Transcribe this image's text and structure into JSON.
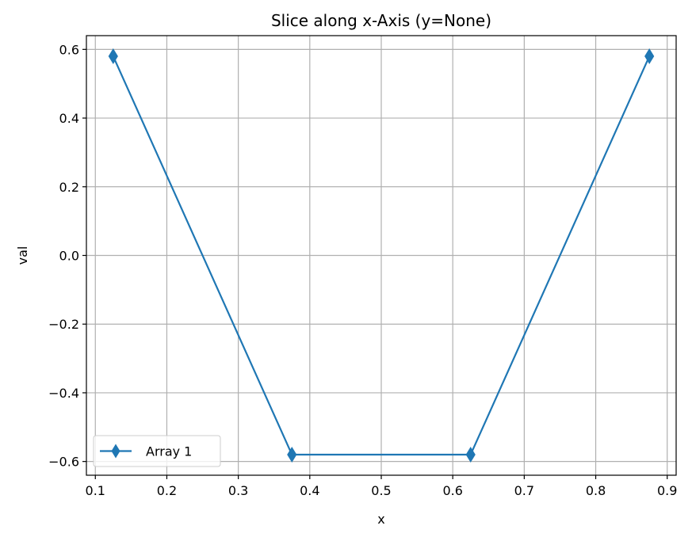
{
  "chart_data": {
    "type": "line",
    "title": "Slice along x-Axis (y=None)",
    "xlabel": "x",
    "ylabel": "val",
    "xlim": [
      0.0875,
      0.9125
    ],
    "ylim": [
      -0.64,
      0.64
    ],
    "xticks": [
      0.1,
      0.2,
      0.3,
      0.4,
      0.5,
      0.6,
      0.7,
      0.8,
      0.9
    ],
    "xtick_labels": [
      "0.1",
      "0.2",
      "0.3",
      "0.4",
      "0.5",
      "0.6",
      "0.7",
      "0.8",
      "0.9"
    ],
    "yticks": [
      -0.6,
      -0.4,
      -0.2,
      0.0,
      0.2,
      0.4,
      0.6
    ],
    "ytick_labels": [
      "−0.6",
      "−0.4",
      "−0.2",
      "0.0",
      "0.2",
      "0.4",
      "0.6"
    ],
    "grid": true,
    "legend_position": "lower-left",
    "series": [
      {
        "name": "Array 1",
        "color": "#1f77b4",
        "marker": "thin-diamond",
        "x": [
          0.125,
          0.375,
          0.625,
          0.875
        ],
        "y": [
          0.58,
          -0.58,
          -0.58,
          0.58
        ]
      }
    ]
  }
}
